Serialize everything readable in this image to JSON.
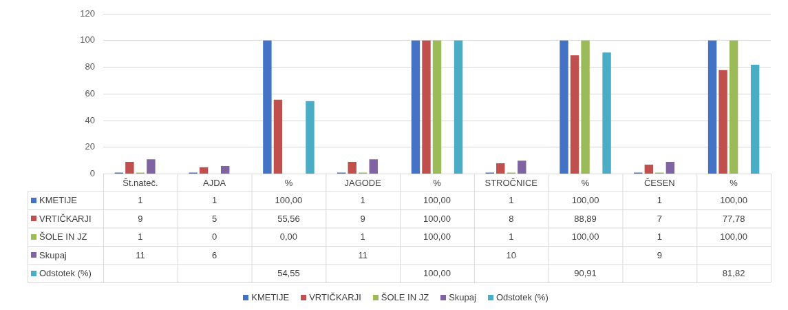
{
  "chart_data": {
    "type": "bar",
    "categories": [
      "Št.nateč.",
      "AJDA",
      "%",
      "JAGODE",
      "%",
      "STROČNICE",
      "%",
      "ČESEN",
      "%"
    ],
    "series": [
      {
        "name": "KMETIJE",
        "color": "#4472c4",
        "values": [
          1,
          1,
          100,
          1,
          100,
          1,
          100,
          1,
          100
        ],
        "value_labels": [
          "1",
          "1",
          "100,00",
          "1",
          "100,00",
          "1",
          "100,00",
          "1",
          "100,00"
        ]
      },
      {
        "name": "VRTIČKARJI",
        "color": "#c0504d",
        "values": [
          9,
          5,
          55.56,
          9,
          100,
          8,
          88.89,
          7,
          77.78
        ],
        "value_labels": [
          "9",
          "5",
          "55,56",
          "9",
          "100,00",
          "8",
          "88,89",
          "7",
          "77,78"
        ]
      },
      {
        "name": "ŠOLE IN JZ",
        "color": "#9bbb59",
        "values": [
          1,
          0,
          0,
          1,
          100,
          1,
          100,
          1,
          100
        ],
        "value_labels": [
          "1",
          "0",
          "0,00",
          "1",
          "100,00",
          "1",
          "100,00",
          "1",
          "100,00"
        ]
      },
      {
        "name": "Skupaj",
        "color": "#8064a2",
        "values": [
          11,
          6,
          null,
          11,
          null,
          10,
          null,
          9,
          null
        ],
        "value_labels": [
          "11",
          "6",
          null,
          "11",
          null,
          "10",
          null,
          "9",
          null
        ]
      },
      {
        "name": "Odstotek (%)",
        "color": "#4bacc6",
        "values": [
          null,
          null,
          54.55,
          null,
          100,
          null,
          90.91,
          null,
          81.82
        ],
        "value_labels": [
          null,
          null,
          "54,55",
          null,
          "100,00",
          null,
          "90,91",
          null,
          "81,82"
        ]
      }
    ],
    "ylim": [
      0,
      120
    ],
    "yticks": [
      0,
      20,
      40,
      60,
      80,
      100,
      120
    ],
    "grid": "y",
    "legend": "bottom"
  }
}
